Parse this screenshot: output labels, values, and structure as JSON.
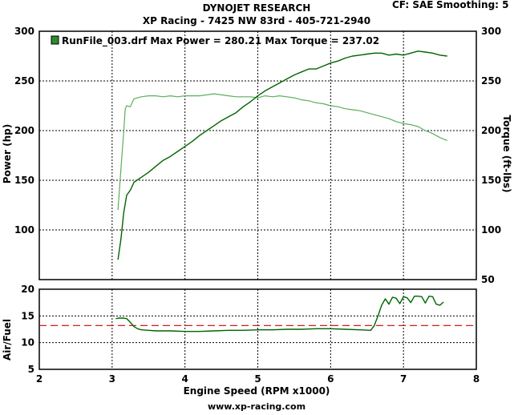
{
  "header": {
    "title": "DYNOJET RESEARCH",
    "subtitle": "XP Racing - 7425 NW 83rd - 405-721-2940",
    "cf_label": "CF: SAE",
    "smoothing_label": "Smoothing: 5"
  },
  "footer": {
    "website": "www.xp-racing.com"
  },
  "colors": {
    "power": "#006400",
    "torque": "#5cae5c",
    "air_fuel": "#006400",
    "target_line": "#cc0000",
    "grid": "#000000",
    "legend_swatch": "#2e8b2e"
  },
  "chart_data": [
    {
      "type": "line",
      "legend": "RunFile_003.drf Max Power = 280.21    Max Torque = 237.02",
      "legend_placement": "top-left",
      "xlabel": "",
      "ylabel": "Power (hp)",
      "y2label": "Torque (ft-lbs)",
      "xlim": [
        2,
        8
      ],
      "ylim": [
        50,
        300
      ],
      "y2lim": [
        50,
        300
      ],
      "y_ticks": [
        100,
        150,
        200,
        250,
        300
      ],
      "y2_ticks": [
        50,
        100,
        150,
        200,
        250,
        300
      ],
      "grid": true,
      "series": [
        {
          "name": "Power",
          "axis": "left",
          "x": [
            3.08,
            3.12,
            3.16,
            3.2,
            3.25,
            3.3,
            3.4,
            3.5,
            3.6,
            3.7,
            3.8,
            3.9,
            4.0,
            4.1,
            4.2,
            4.3,
            4.4,
            4.5,
            4.6,
            4.7,
            4.8,
            4.9,
            5.0,
            5.1,
            5.2,
            5.3,
            5.4,
            5.5,
            5.6,
            5.7,
            5.8,
            5.9,
            6.0,
            6.1,
            6.2,
            6.3,
            6.4,
            6.5,
            6.6,
            6.7,
            6.8,
            6.9,
            7.0,
            7.1,
            7.2,
            7.3,
            7.4,
            7.5,
            7.6
          ],
          "values": [
            70,
            90,
            118,
            135,
            140,
            148,
            153,
            158,
            164,
            170,
            174,
            179,
            184,
            189,
            195,
            200,
            205,
            210,
            214,
            218,
            224,
            229,
            235,
            240,
            244,
            248,
            252,
            256,
            259,
            262,
            262,
            265,
            268,
            270,
            273,
            275,
            276,
            277,
            278,
            278,
            276,
            277,
            276,
            278,
            280,
            279,
            278,
            276,
            275
          ]
        },
        {
          "name": "Torque",
          "axis": "right",
          "x": [
            3.08,
            3.12,
            3.16,
            3.18,
            3.2,
            3.25,
            3.3,
            3.4,
            3.5,
            3.6,
            3.7,
            3.8,
            3.9,
            4.0,
            4.1,
            4.2,
            4.3,
            4.4,
            4.5,
            4.6,
            4.7,
            4.8,
            4.9,
            5.0,
            5.1,
            5.2,
            5.3,
            5.4,
            5.5,
            5.6,
            5.7,
            5.8,
            5.9,
            6.0,
            6.1,
            6.2,
            6.3,
            6.4,
            6.5,
            6.6,
            6.7,
            6.8,
            6.9,
            7.0,
            7.1,
            7.2,
            7.3,
            7.4,
            7.5,
            7.6
          ],
          "values": [
            120,
            160,
            200,
            222,
            225,
            224,
            232,
            234,
            235,
            235,
            234,
            235,
            234,
            235,
            235,
            235,
            236,
            237,
            236,
            235,
            234,
            234,
            234,
            233,
            235,
            234,
            235,
            234,
            233,
            231,
            230,
            228,
            227,
            225,
            224,
            222,
            221,
            220,
            218,
            216,
            214,
            212,
            209,
            207,
            206,
            204,
            200,
            197,
            193,
            190
          ]
        }
      ]
    },
    {
      "type": "line",
      "xlabel": "Engine Speed (RPM x1000)",
      "ylabel": "Air/Fuel",
      "xlim": [
        2,
        8
      ],
      "ylim": [
        5,
        20
      ],
      "x_ticks": [
        2,
        3,
        4,
        5,
        6,
        7,
        8
      ],
      "y_ticks": [
        5,
        10,
        15,
        20
      ],
      "grid": true,
      "target_afr": 13.2,
      "series": [
        {
          "name": "Air/Fuel",
          "x": [
            3.05,
            3.1,
            3.15,
            3.2,
            3.25,
            3.3,
            3.35,
            3.4,
            3.5,
            3.6,
            3.8,
            4.0,
            4.2,
            4.4,
            4.6,
            4.8,
            5.0,
            5.2,
            5.4,
            5.6,
            5.8,
            6.0,
            6.2,
            6.4,
            6.55,
            6.6,
            6.65,
            6.7,
            6.75,
            6.8,
            6.85,
            6.9,
            6.95,
            7.0,
            7.05,
            7.1,
            7.15,
            7.2,
            7.25,
            7.3,
            7.35,
            7.4,
            7.45,
            7.5,
            7.55
          ],
          "values": [
            14.5,
            14.6,
            14.6,
            14.5,
            13.8,
            13.0,
            12.6,
            12.4,
            12.3,
            12.2,
            12.2,
            12.1,
            12.1,
            12.2,
            12.3,
            12.3,
            12.4,
            12.4,
            12.5,
            12.5,
            12.6,
            12.6,
            12.5,
            12.4,
            12.3,
            13.2,
            15.0,
            17.0,
            18.2,
            17.2,
            18.5,
            18.3,
            17.3,
            18.6,
            18.4,
            17.5,
            18.7,
            18.7,
            18.6,
            17.4,
            18.7,
            18.6,
            17.2,
            17.0,
            17.6
          ]
        }
      ]
    }
  ]
}
